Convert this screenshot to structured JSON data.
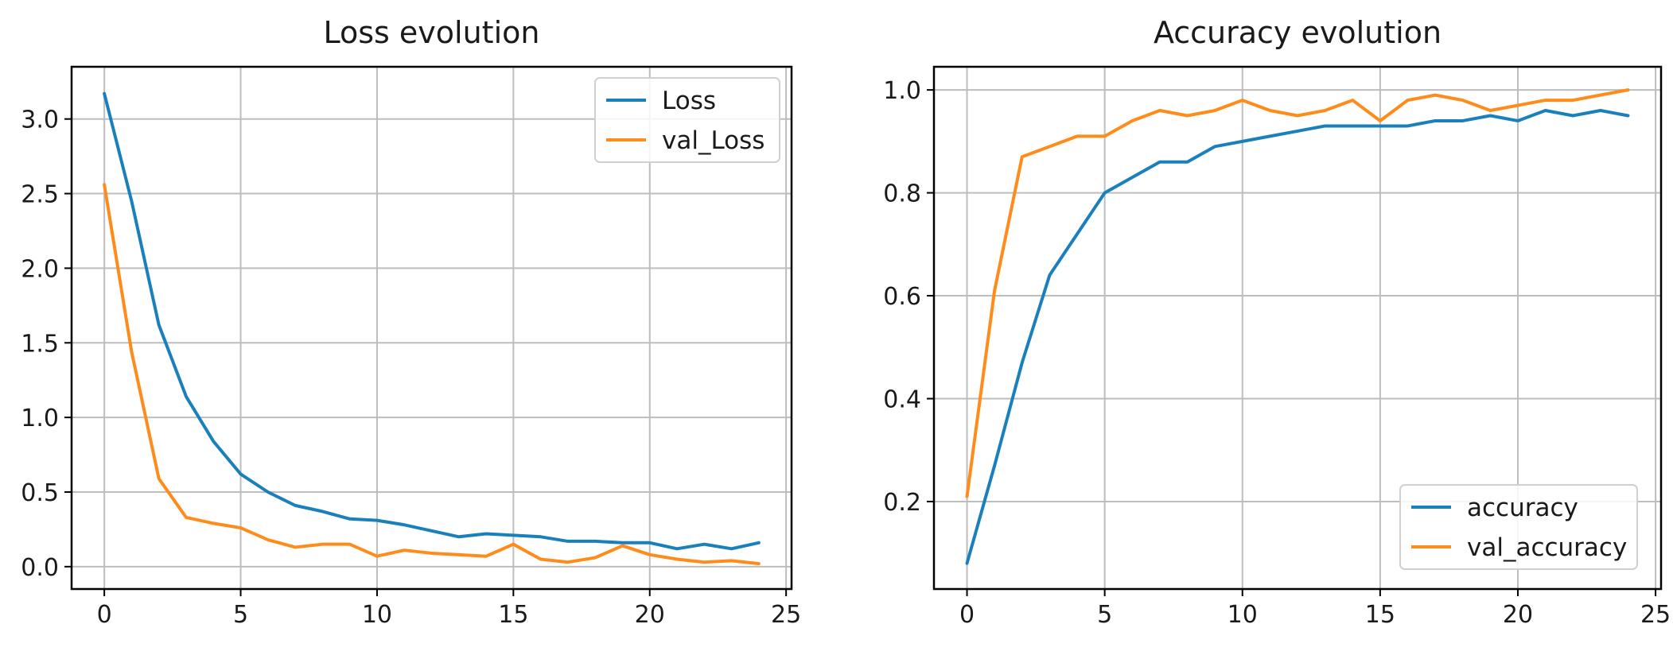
{
  "colors": {
    "loss": "#1a80bb",
    "val_loss": "#ff8c1a"
  },
  "chart_data": [
    {
      "type": "line",
      "title": "Loss evolution",
      "xlabel": "",
      "ylabel": "",
      "xlim": [
        -1.2,
        25.2
      ],
      "ylim": [
        -0.15,
        3.35
      ],
      "xticks": [
        0,
        5,
        10,
        15,
        20,
        25
      ],
      "xtick_labels": [
        "0",
        "5",
        "10",
        "15",
        "20",
        "25"
      ],
      "yticks": [
        0.0,
        0.5,
        1.0,
        1.5,
        2.0,
        2.5,
        3.0
      ],
      "ytick_labels": [
        "0.0",
        "0.5",
        "1.0",
        "1.5",
        "2.0",
        "2.5",
        "3.0"
      ],
      "grid": true,
      "legend_position": "top-right",
      "x": [
        0,
        1,
        2,
        3,
        4,
        5,
        6,
        7,
        8,
        9,
        10,
        11,
        12,
        13,
        14,
        15,
        16,
        17,
        18,
        19,
        20,
        21,
        22,
        23,
        24
      ],
      "series": [
        {
          "name": "Loss",
          "color": "#1a80bb",
          "values": [
            3.17,
            2.45,
            1.62,
            1.14,
            0.84,
            0.62,
            0.5,
            0.41,
            0.37,
            0.32,
            0.31,
            0.28,
            0.24,
            0.2,
            0.22,
            0.21,
            0.2,
            0.17,
            0.17,
            0.16,
            0.16,
            0.12,
            0.15,
            0.12,
            0.16
          ]
        },
        {
          "name": "val_Loss",
          "color": "#ff8c1a",
          "values": [
            2.56,
            1.44,
            0.59,
            0.33,
            0.29,
            0.26,
            0.18,
            0.13,
            0.15,
            0.15,
            0.07,
            0.11,
            0.09,
            0.08,
            0.07,
            0.15,
            0.05,
            0.03,
            0.06,
            0.14,
            0.08,
            0.05,
            0.03,
            0.04,
            0.02
          ]
        }
      ]
    },
    {
      "type": "line",
      "title": "Accuracy evolution",
      "xlabel": "",
      "ylabel": "",
      "xlim": [
        -1.2,
        25.2
      ],
      "ylim": [
        0.03,
        1.045
      ],
      "xticks": [
        0,
        5,
        10,
        15,
        20,
        25
      ],
      "xtick_labels": [
        "0",
        "5",
        "10",
        "15",
        "20",
        "25"
      ],
      "yticks": [
        0.2,
        0.4,
        0.6,
        0.8,
        1.0
      ],
      "ytick_labels": [
        "0.2",
        "0.4",
        "0.6",
        "0.8",
        "1.0"
      ],
      "grid": true,
      "legend_position": "bottom-right",
      "x": [
        0,
        1,
        2,
        3,
        4,
        5,
        6,
        7,
        8,
        9,
        10,
        11,
        12,
        13,
        14,
        15,
        16,
        17,
        18,
        19,
        20,
        21,
        22,
        23,
        24
      ],
      "series": [
        {
          "name": "accuracy",
          "color": "#1a80bb",
          "values": [
            0.08,
            0.27,
            0.47,
            0.64,
            0.72,
            0.8,
            0.83,
            0.86,
            0.86,
            0.89,
            0.9,
            0.91,
            0.92,
            0.93,
            0.93,
            0.93,
            0.93,
            0.94,
            0.94,
            0.95,
            0.94,
            0.96,
            0.95,
            0.96,
            0.95
          ]
        },
        {
          "name": "val_accuracy",
          "color": "#ff8c1a",
          "values": [
            0.21,
            0.61,
            0.87,
            0.89,
            0.91,
            0.91,
            0.94,
            0.96,
            0.95,
            0.96,
            0.98,
            0.96,
            0.95,
            0.96,
            0.98,
            0.94,
            0.98,
            0.99,
            0.98,
            0.96,
            0.97,
            0.98,
            0.98,
            0.99,
            1.0
          ]
        }
      ]
    }
  ]
}
